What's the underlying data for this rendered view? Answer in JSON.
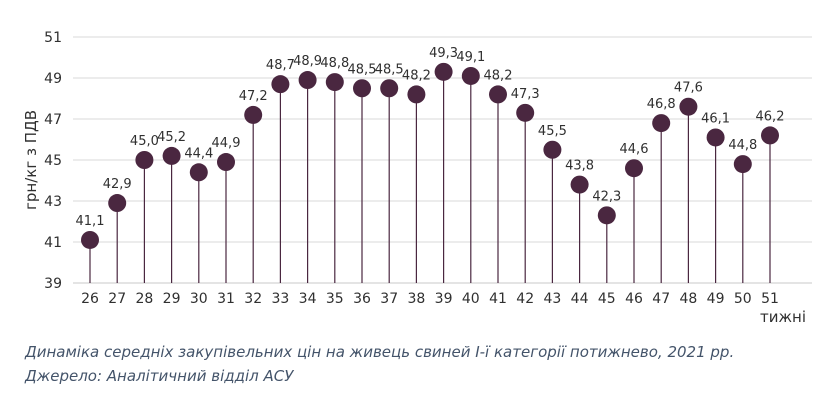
{
  "chart_data": {
    "type": "scatter",
    "variant": "lollipop",
    "title": "",
    "xlabel": "тижні",
    "ylabel": "грн/кг з ПДВ",
    "x": [
      26,
      27,
      28,
      29,
      30,
      31,
      32,
      33,
      34,
      35,
      36,
      37,
      38,
      39,
      40,
      41,
      42,
      43,
      44,
      45,
      46,
      47,
      48,
      49,
      50,
      51
    ],
    "values": [
      41.1,
      42.9,
      45.0,
      45.2,
      44.4,
      44.9,
      47.2,
      48.7,
      48.9,
      48.8,
      48.5,
      48.5,
      48.2,
      49.3,
      49.1,
      48.2,
      47.3,
      45.5,
      43.8,
      42.3,
      44.6,
      46.8,
      47.6,
      46.1,
      44.8,
      46.2
    ],
    "labels": [
      "41,1",
      "42,9",
      "45,0",
      "45,2",
      "44,4",
      "44,9",
      "47,2",
      "48,7",
      "48,9",
      "48,8",
      "48,5",
      "48,5",
      "48,2",
      "49,3",
      "49,1",
      "48,2",
      "47,3",
      "45,5",
      "43,8",
      "42,3",
      "44,6",
      "46,8",
      "47,6",
      "46,1",
      "44,8",
      "46,2"
    ],
    "ylim": [
      39,
      51
    ],
    "yticks": [
      39,
      41,
      43,
      45,
      47,
      49,
      51
    ],
    "grid": true,
    "legend": "none",
    "colors": {
      "marker": "#4A2740",
      "grid": "#D9D9D9",
      "axis": "#C8C8C8",
      "text": "#303030"
    }
  },
  "caption": {
    "line1": "Динаміка середніх закупівельних цін на живець свиней І-ї категорії потижнево, 2021 рр.",
    "line2": "Джерело: Аналітичний відділ АСУ",
    "color": "#44546A"
  }
}
